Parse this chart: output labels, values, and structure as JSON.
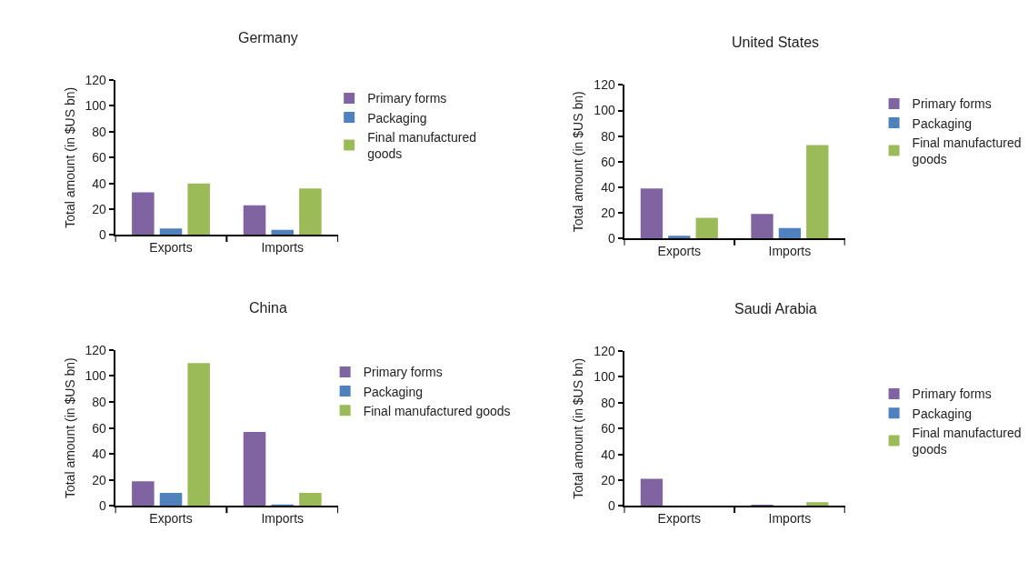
{
  "chart_data": [
    {
      "type": "bar",
      "title": "Germany",
      "categories": [
        "Exports",
        "Imports"
      ],
      "ylabel": "Total amount (in $US bn)",
      "ylim": [
        0,
        120
      ],
      "yticks": [
        0,
        20,
        40,
        60,
        80,
        100,
        120
      ],
      "legend": "right",
      "series": [
        {
          "name": "Primary forms",
          "color": "#8064a2",
          "values": [
            33,
            23
          ]
        },
        {
          "name": "Packaging",
          "color": "#4f81bd",
          "values": [
            5,
            4
          ]
        },
        {
          "name": "Final manufactured goods",
          "color": "#9bbb59",
          "values": [
            40,
            36
          ]
        }
      ]
    },
    {
      "type": "bar",
      "title": "United States",
      "categories": [
        "Exports",
        "Imports"
      ],
      "ylabel": "Total amount (in $US bn)",
      "ylim": [
        0,
        120
      ],
      "yticks": [
        0,
        20,
        40,
        60,
        80,
        100,
        120
      ],
      "legend": "right",
      "series": [
        {
          "name": "Primary forms",
          "color": "#8064a2",
          "values": [
            39,
            19
          ]
        },
        {
          "name": "Packaging",
          "color": "#4f81bd",
          "values": [
            2,
            8
          ]
        },
        {
          "name": "Final manufactured goods",
          "color": "#9bbb59",
          "values": [
            16,
            73
          ]
        }
      ]
    },
    {
      "type": "bar",
      "title": "China",
      "categories": [
        "Exports",
        "Imports"
      ],
      "ylabel": "Total amount (in $US bn)",
      "ylim": [
        0,
        120
      ],
      "yticks": [
        0,
        20,
        40,
        60,
        80,
        100,
        120
      ],
      "legend": "right",
      "series": [
        {
          "name": "Primary forms",
          "color": "#8064a2",
          "values": [
            19,
            57
          ]
        },
        {
          "name": "Packaging",
          "color": "#4f81bd",
          "values": [
            10,
            0.5
          ]
        },
        {
          "name": "Final manufactured goods",
          "color": "#9bbb59",
          "values": [
            110,
            10
          ]
        }
      ]
    },
    {
      "type": "bar",
      "title": "Saudi Arabia",
      "categories": [
        "Exports",
        "Imports"
      ],
      "ylabel": "Total amount (in $US bn)",
      "ylim": [
        0,
        120
      ],
      "yticks": [
        0,
        20,
        40,
        60,
        80,
        100,
        120
      ],
      "legend": "right",
      "series": [
        {
          "name": "Primary forms",
          "color": "#8064a2",
          "values": [
            21,
            0.5
          ]
        },
        {
          "name": "Packaging",
          "color": "#4f81bd",
          "values": [
            0,
            0
          ]
        },
        {
          "name": "Final manufactured goods",
          "color": "#9bbb59",
          "values": [
            0,
            3
          ]
        }
      ]
    }
  ]
}
